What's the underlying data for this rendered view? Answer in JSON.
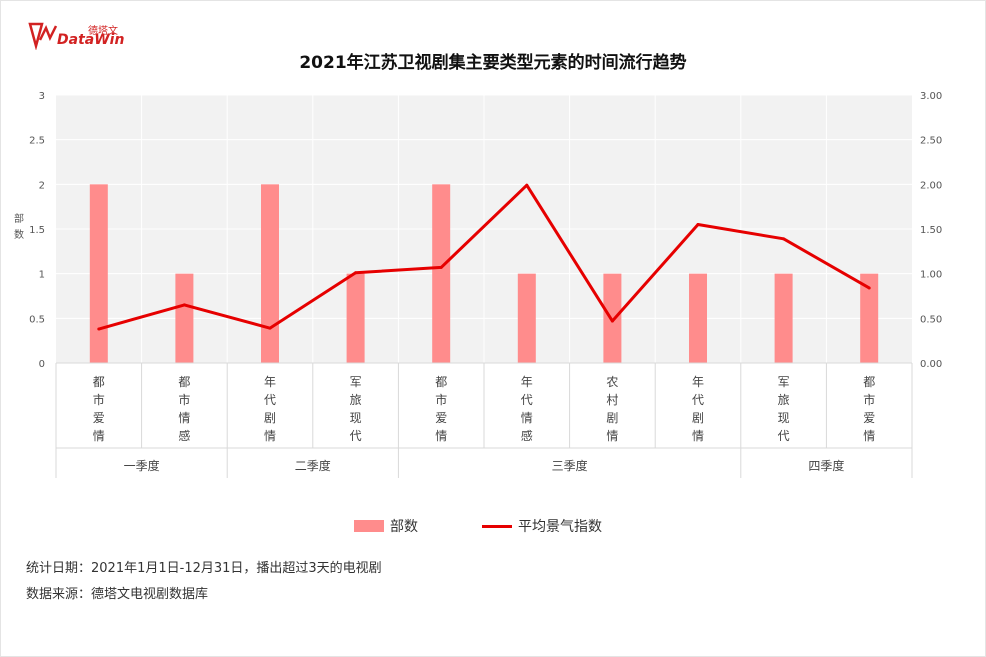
{
  "logo": {
    "sub": "德塔文",
    "main": "DataWin"
  },
  "chart_data": {
    "type": "bar",
    "title": "2021年江苏卫视剧集主要类型元素的时间流行趋势",
    "categories": [
      "都市爱情",
      "都市情感",
      "年代剧情",
      "军旅现代",
      "都市爱情",
      "年代情感",
      "农村剧情",
      "年代剧情",
      "军旅现代",
      "都市爱情"
    ],
    "groups": [
      {
        "label": "一季度",
        "span": 2
      },
      {
        "label": "二季度",
        "span": 2
      },
      {
        "label": "三季度",
        "span": 4
      },
      {
        "label": "四季度",
        "span": 2
      }
    ],
    "series": [
      {
        "name": "部数",
        "type": "bar",
        "axis": "left",
        "color": "#ff8c8c",
        "values": [
          2,
          1,
          2,
          1,
          2,
          1,
          1,
          1,
          1,
          1
        ]
      },
      {
        "name": "平均景气指数",
        "type": "line",
        "axis": "right",
        "color": "#e60000",
        "values": [
          0.38,
          0.65,
          0.39,
          1.01,
          1.07,
          1.99,
          0.47,
          1.55,
          1.39,
          0.84
        ]
      }
    ],
    "ylabel": "部数",
    "ylim": [
      0,
      3
    ],
    "y2lim": [
      0,
      3
    ],
    "yticks": [
      "0",
      "0.5",
      "1",
      "1.5",
      "2",
      "2.5",
      "3"
    ],
    "y2ticks": [
      "0.00",
      "0.50",
      "1.00",
      "1.50",
      "2.00",
      "2.50",
      "3.00"
    ],
    "grid": true,
    "legend": "bottom"
  },
  "notes": {
    "date": "统计日期：2021年1月1日-12月31日，播出超过3天的电视剧",
    "source": "数据来源：德塔文电视剧数据库"
  }
}
